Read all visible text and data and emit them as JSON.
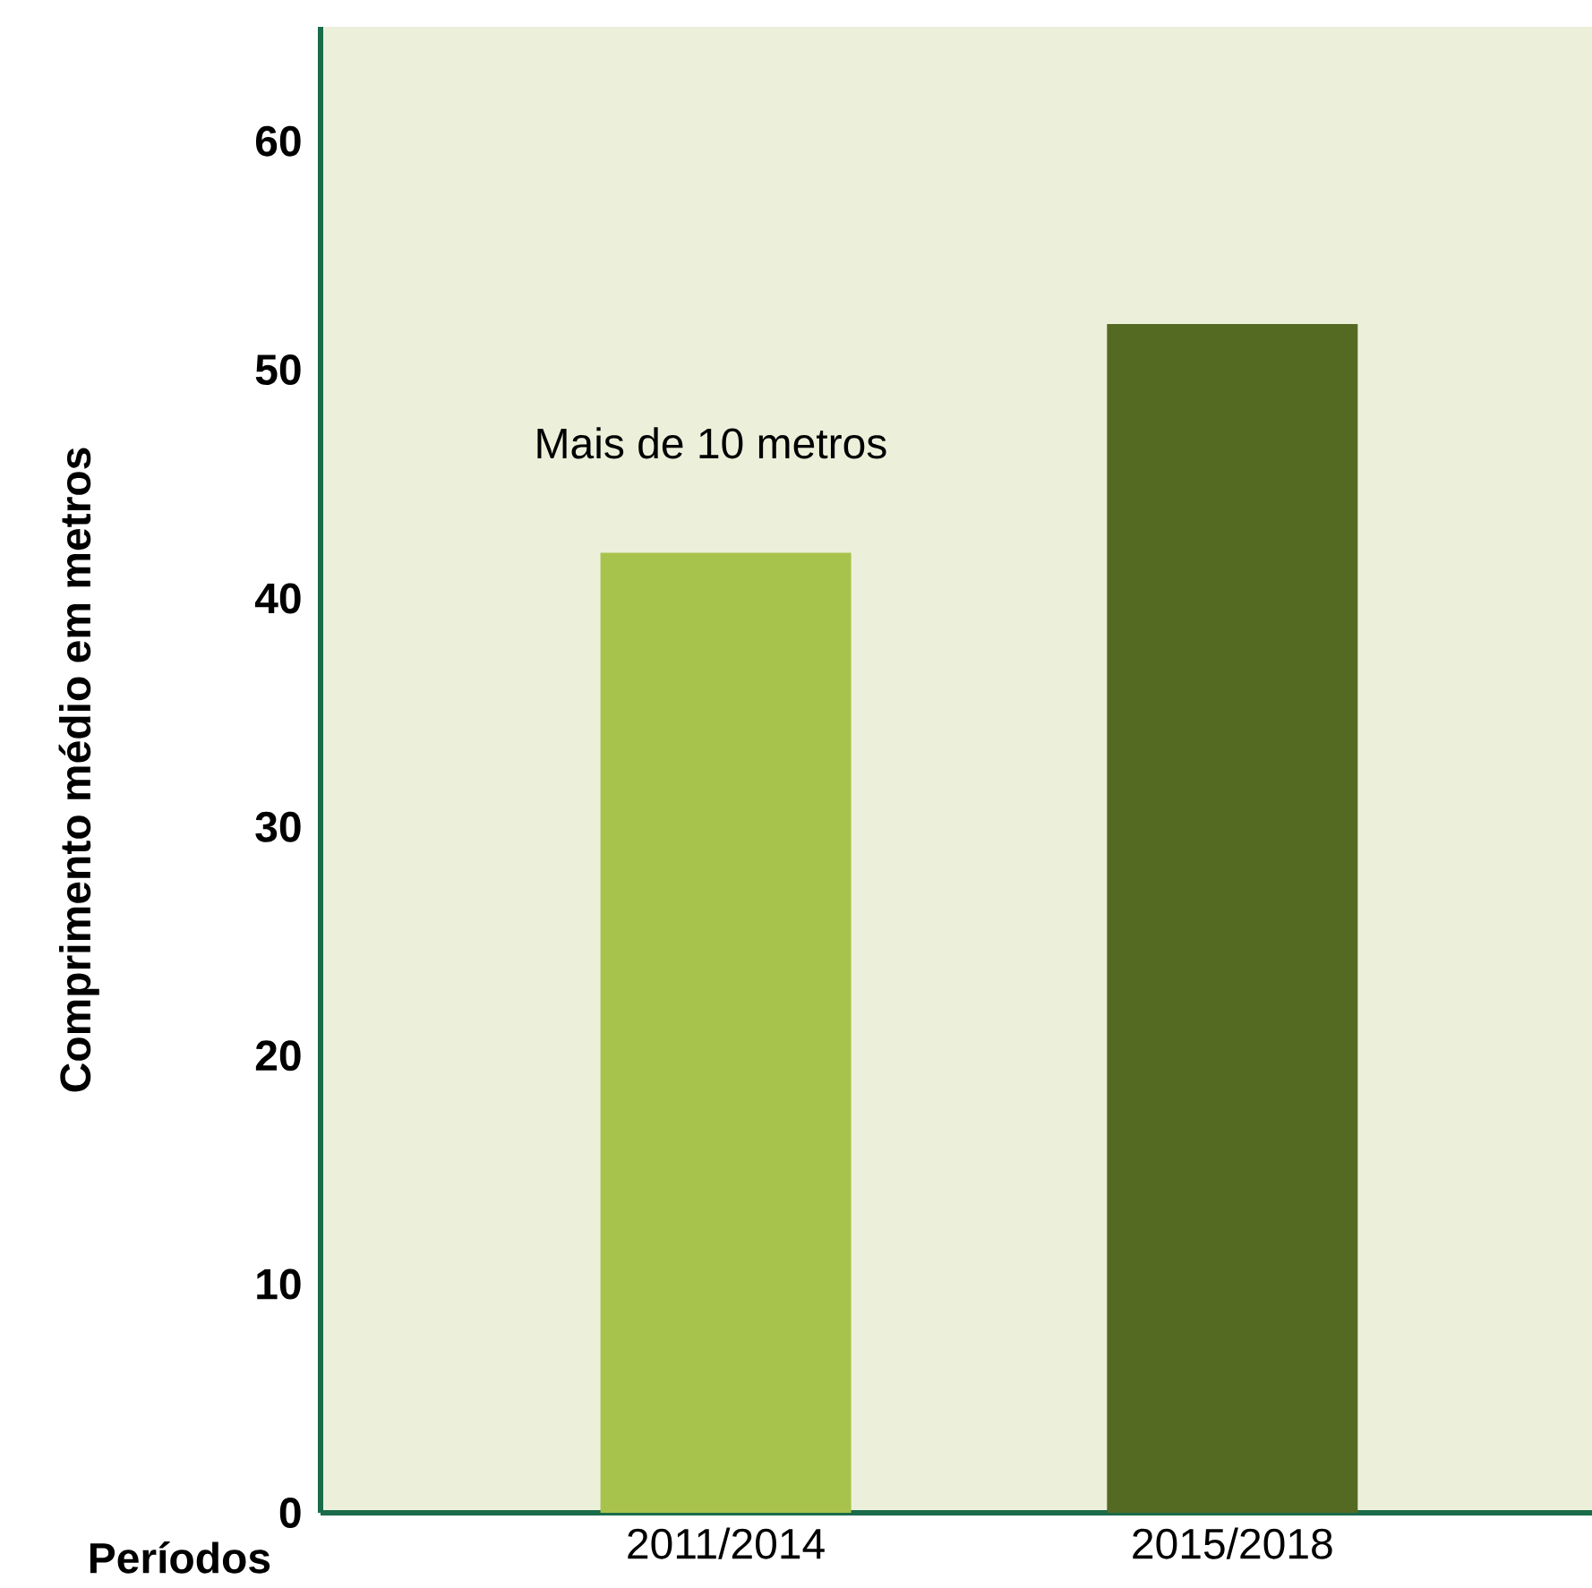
{
  "chart_data": {
    "type": "bar",
    "xlabel": "Períodos",
    "ylabel": "Comprimento médio em metros",
    "categories": [
      "2011/2014",
      "2015/2018"
    ],
    "values": [
      42,
      52
    ],
    "colors": [
      "#a8c34b",
      "#546a23"
    ],
    "ylim": [
      0,
      65
    ],
    "yticks": [
      0,
      10,
      20,
      30,
      40,
      50,
      60
    ],
    "annotations": [
      "Mais de 10 metros"
    ]
  }
}
